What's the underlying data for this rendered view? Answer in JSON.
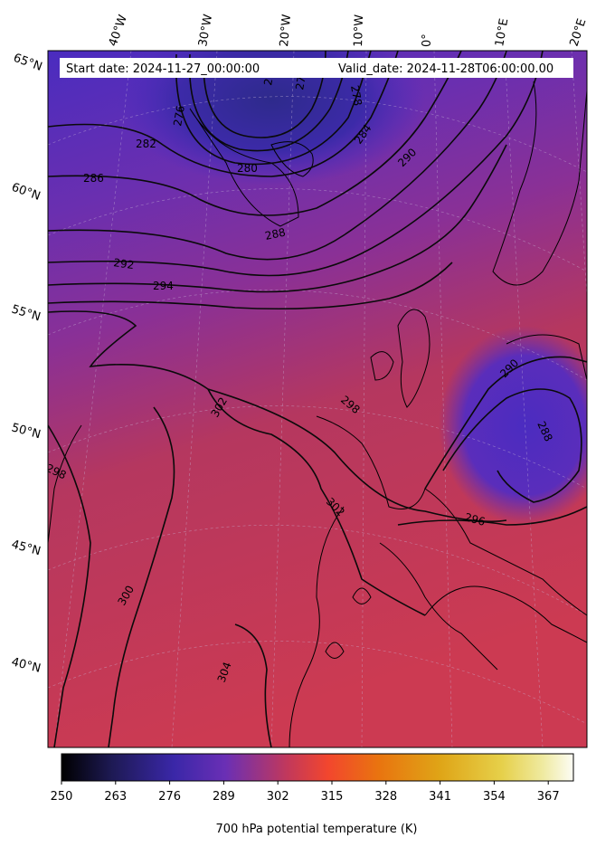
{
  "header": {
    "start_date": "Start date: 2024-11-27_00:00:00",
    "valid_date": "Valid_date: 2024-11-28T06:00:00.00"
  },
  "map": {
    "lon_labels": [
      "40°W",
      "30°W",
      "20°W",
      "10°W",
      "0°",
      "10°E",
      "20°E"
    ],
    "lat_labels": [
      "65°N",
      "60°N",
      "55°N",
      "50°N",
      "45°N",
      "40°N"
    ],
    "contour_labels": [
      "276",
      "270",
      "272",
      "278",
      "282",
      "284",
      "280",
      "290",
      "286",
      "288",
      "292",
      "294",
      "302",
      "298",
      "290",
      "288",
      "298",
      "302",
      "296",
      "300",
      "304"
    ],
    "colors": {
      "cold": "#4a2cbf",
      "mid": "#7a2fa3",
      "warm": "#cc3a55"
    }
  },
  "colorbar": {
    "ticks": [
      "250",
      "263",
      "276",
      "289",
      "302",
      "315",
      "328",
      "341",
      "354",
      "367"
    ],
    "label": "700 hPa potential temperature (K)",
    "range": [
      250,
      373
    ],
    "colormap": "CMRmap"
  }
}
